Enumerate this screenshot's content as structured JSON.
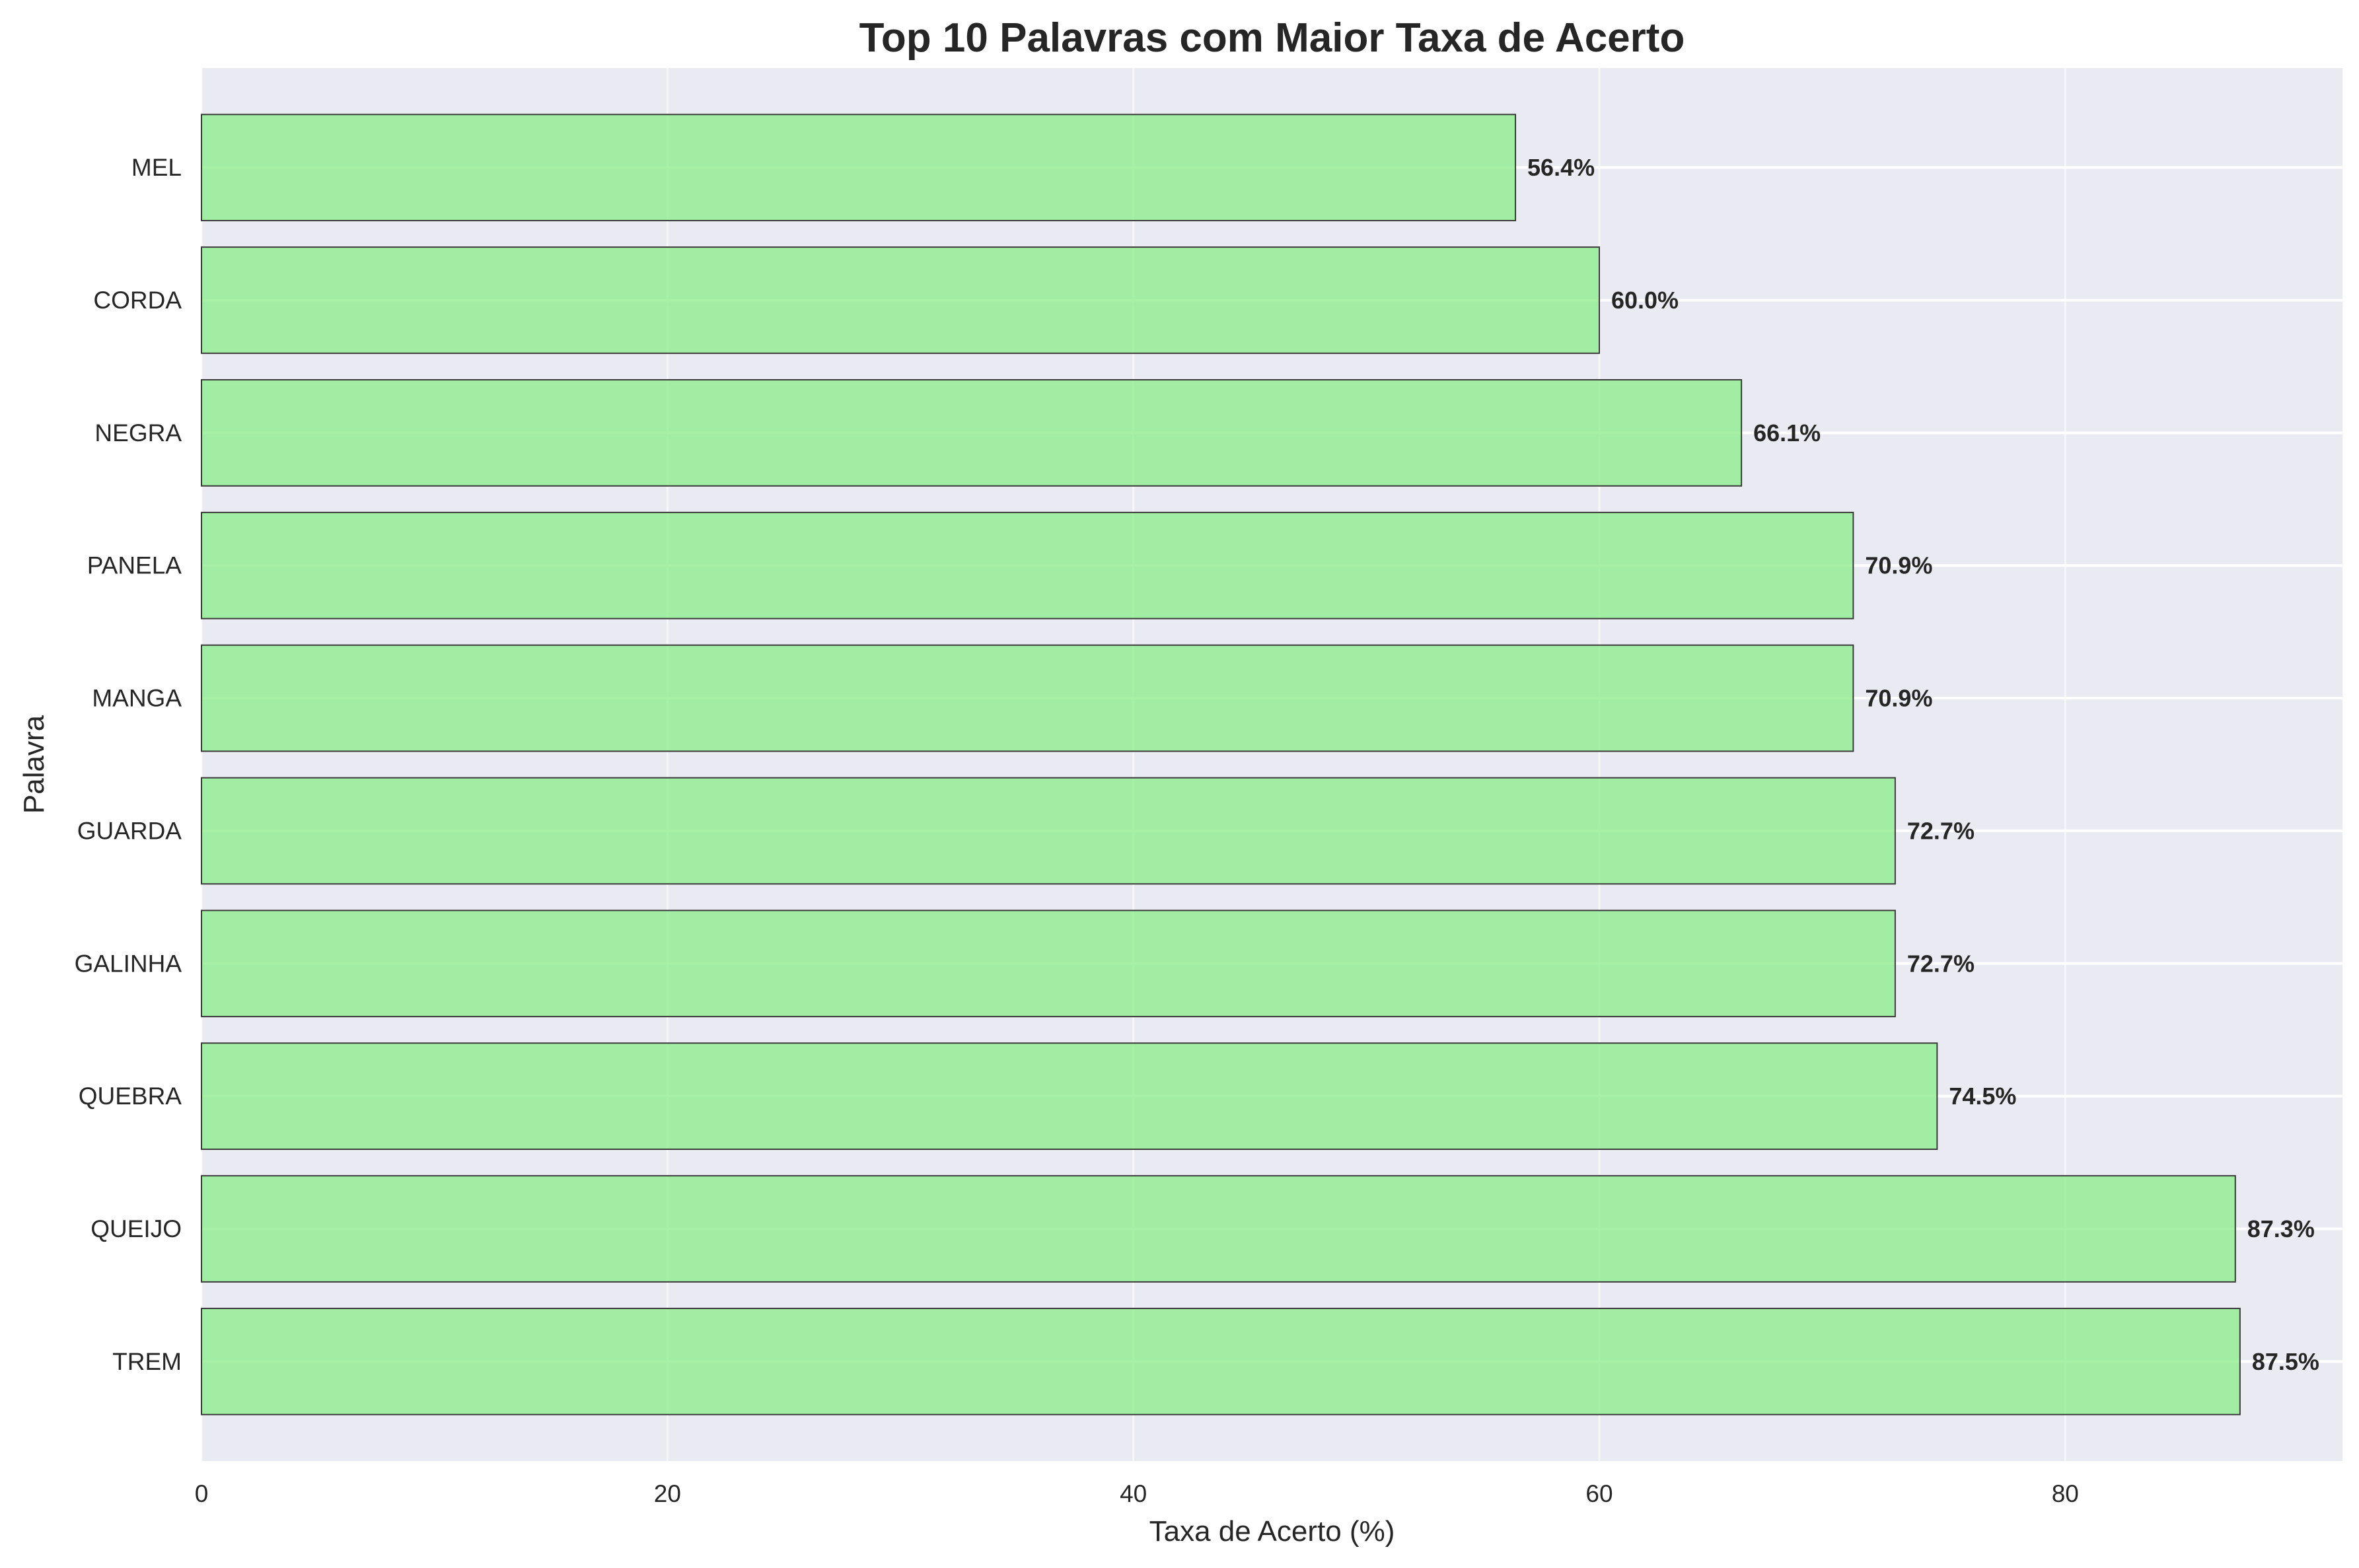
{
  "chart_data": {
    "type": "bar",
    "orientation": "horizontal",
    "title": "Top 10 Palavras com Maior Taxa de Acerto",
    "xlabel": "Taxa de Acerto (%)",
    "ylabel": "Palavra",
    "xlim": [
      0,
      91.9
    ],
    "xticks": [
      0,
      20,
      40,
      60,
      80
    ],
    "grid": true,
    "categories": [
      "MEL",
      "CORDA",
      "NEGRA",
      "PANELA",
      "MANGA",
      "GUARDA",
      "GALINHA",
      "QUEBRA",
      "QUEIJO",
      "TREM"
    ],
    "values": [
      56.4,
      60.0,
      66.1,
      70.9,
      70.9,
      72.7,
      72.7,
      74.5,
      87.3,
      87.5
    ],
    "value_labels": [
      "56.4%",
      "60.0%",
      "66.1%",
      "70.9%",
      "70.9%",
      "72.7%",
      "72.7%",
      "74.5%",
      "87.3%",
      "87.5%"
    ],
    "colors": {
      "bar_fill": "#90ee90",
      "bar_edge": "#3a3a3a",
      "plot_background": "#eaeaf2",
      "grid": "#ffffff",
      "text": "#262626"
    }
  }
}
